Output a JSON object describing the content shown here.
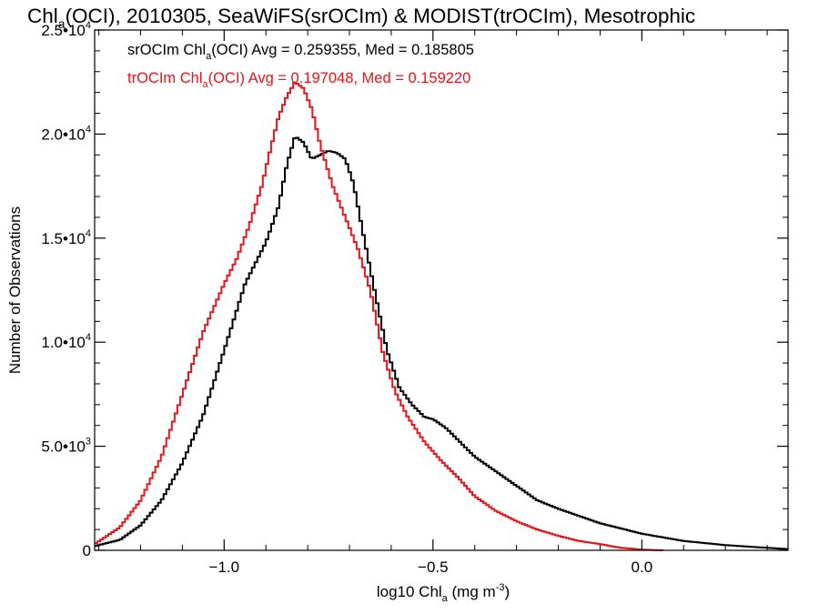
{
  "chart_data": {
    "type": "line",
    "title": {
      "main": "Chl",
      "sub": "a",
      "rest": "(OCI), 2010305, SeaWiFS(srOCIm) & MODIST(trOCIm), Mesotrophic"
    },
    "xlabel": {
      "main": "log10 Chl",
      "sub": "a",
      "rest": " (mg m",
      "sup": "-3",
      "end": ")"
    },
    "ylabel": "Number of Observations",
    "xlim": [
      -1.31,
      0.35
    ],
    "ylim": [
      0,
      25000
    ],
    "grid": false,
    "x_ticks": [
      {
        "value": -1.0,
        "label": "−1.0"
      },
      {
        "value": -0.5,
        "label": "−0.5"
      },
      {
        "value": 0.0,
        "label": "0.0"
      }
    ],
    "y_ticks": [
      {
        "value": 0,
        "mant": "0",
        "exp": ""
      },
      {
        "value": 5000,
        "mant": "5.0•10",
        "exp": "3"
      },
      {
        "value": 10000,
        "mant": "1.0•10",
        "exp": "4"
      },
      {
        "value": 15000,
        "mant": "1.5•10",
        "exp": "4"
      },
      {
        "value": 20000,
        "mant": "2.0•10",
        "exp": "4"
      },
      {
        "value": 25000,
        "mant": "2.5•10",
        "exp": "4"
      }
    ],
    "annotations": [
      {
        "pre": "srOCIm Chl",
        "sub": "a",
        "post": "(OCI) Avg = 0.259355, Med = 0.185805",
        "color": "#000000"
      },
      {
        "pre": "trOCIm Chl",
        "sub": "a",
        "post": "(OCI) Avg = 0.197048, Med = 0.159220",
        "color": "#e8141b"
      }
    ],
    "series": [
      {
        "color": "#000000",
        "x": [
          -1.31,
          -1.25,
          -1.2,
          -1.15,
          -1.1,
          -1.05,
          -1.0,
          -0.95,
          -0.9,
          -0.87,
          -0.85,
          -0.83,
          -0.81,
          -0.79,
          -0.77,
          -0.75,
          -0.73,
          -0.71,
          -0.69,
          -0.67,
          -0.64,
          -0.61,
          -0.58,
          -0.55,
          -0.52,
          -0.5,
          -0.47,
          -0.44,
          -0.4,
          -0.35,
          -0.3,
          -0.25,
          -0.2,
          -0.1,
          0.0,
          0.1,
          0.2,
          0.3,
          0.35
        ],
        "values": [
          200,
          500,
          1200,
          2400,
          4200,
          6500,
          9600,
          12800,
          14800,
          16500,
          18500,
          19900,
          19600,
          18800,
          19000,
          19200,
          19100,
          18800,
          17600,
          15500,
          12500,
          9600,
          7800,
          7000,
          6400,
          6300,
          5900,
          5300,
          4500,
          3800,
          3100,
          2400,
          2000,
          1300,
          800,
          450,
          250,
          120,
          60
        ]
      },
      {
        "color": "#e8141b",
        "x": [
          -1.31,
          -1.25,
          -1.2,
          -1.15,
          -1.1,
          -1.05,
          -1.0,
          -0.97,
          -0.94,
          -0.91,
          -0.89,
          -0.87,
          -0.85,
          -0.83,
          -0.81,
          -0.79,
          -0.77,
          -0.74,
          -0.71,
          -0.68,
          -0.65,
          -0.62,
          -0.59,
          -0.56,
          -0.52,
          -0.48,
          -0.44,
          -0.4,
          -0.35,
          -0.3,
          -0.25,
          -0.2,
          -0.15,
          -0.1,
          -0.05,
          0.0,
          0.05
        ],
        "values": [
          300,
          1100,
          2400,
          4500,
          7500,
          10500,
          12800,
          14000,
          15600,
          17500,
          19200,
          20800,
          21800,
          22500,
          22200,
          21200,
          19500,
          17500,
          16000,
          14500,
          12500,
          9500,
          7600,
          6400,
          5200,
          4300,
          3500,
          2600,
          1900,
          1400,
          1000,
          700,
          450,
          300,
          120,
          40,
          0
        ]
      }
    ]
  }
}
